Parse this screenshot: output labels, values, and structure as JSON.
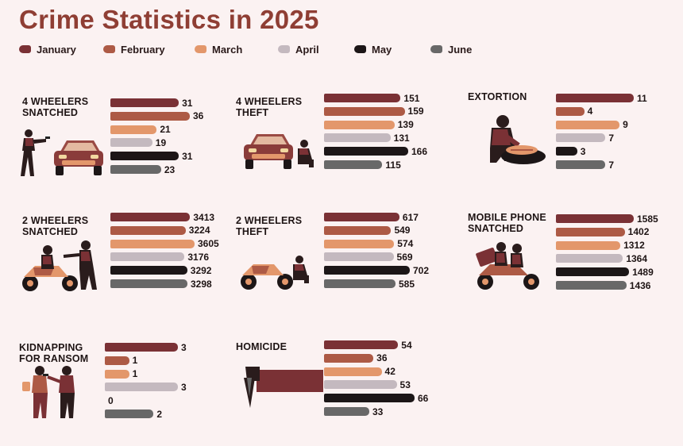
{
  "title": "Crime Statistics in 2025",
  "legend": [
    {
      "label": "January",
      "color": "#7a3135"
    },
    {
      "label": "February",
      "color": "#ad5a45"
    },
    {
      "label": "March",
      "color": "#e3976b"
    },
    {
      "label": "April",
      "color": "#c4b9bf"
    },
    {
      "label": "May",
      "color": "#1c1617"
    },
    {
      "label": "June",
      "color": "#686868"
    }
  ],
  "chart_data": [
    {
      "type": "bar",
      "title": "4 WHEELERS\nSNATCHED",
      "categories": [
        "January",
        "February",
        "March",
        "April",
        "May",
        "June"
      ],
      "values": [
        31,
        36,
        21,
        19,
        31,
        23
      ]
    },
    {
      "type": "bar",
      "title": "4 WHEELERS\nTHEFT",
      "categories": [
        "January",
        "February",
        "March",
        "April",
        "May",
        "June"
      ],
      "values": [
        151,
        159,
        139,
        131,
        166,
        115
      ]
    },
    {
      "type": "bar",
      "title": "EXTORTION",
      "categories": [
        "January",
        "February",
        "March",
        "April",
        "May",
        "June"
      ],
      "values": [
        11,
        4,
        9,
        7,
        3,
        7
      ]
    },
    {
      "type": "bar",
      "title": "2 WHEELERS\nSNATCHED",
      "categories": [
        "January",
        "February",
        "March",
        "April",
        "May",
        "June"
      ],
      "values": [
        3413,
        3224,
        3605,
        3176,
        3292,
        3298
      ]
    },
    {
      "type": "bar",
      "title": "2 WHEELERS\nTHEFT",
      "categories": [
        "January",
        "February",
        "March",
        "April",
        "May",
        "June"
      ],
      "values": [
        617,
        549,
        574,
        569,
        702,
        585
      ]
    },
    {
      "type": "bar",
      "title": "MOBILE PHONE\nSNATCHED",
      "categories": [
        "January",
        "February",
        "March",
        "April",
        "May",
        "June"
      ],
      "values": [
        1585,
        1402,
        1312,
        1364,
        1489,
        1436
      ]
    },
    {
      "type": "bar",
      "title": "KIDNAPPING\nFOR RANSOM",
      "categories": [
        "January",
        "February",
        "March",
        "April",
        "May",
        "June"
      ],
      "values": [
        3,
        1,
        1,
        3,
        0,
        2
      ]
    },
    {
      "type": "bar",
      "title": "HOMICIDE",
      "categories": [
        "January",
        "February",
        "March",
        "April",
        "May",
        "June"
      ],
      "values": [
        54,
        36,
        42,
        53,
        66,
        33
      ]
    }
  ]
}
